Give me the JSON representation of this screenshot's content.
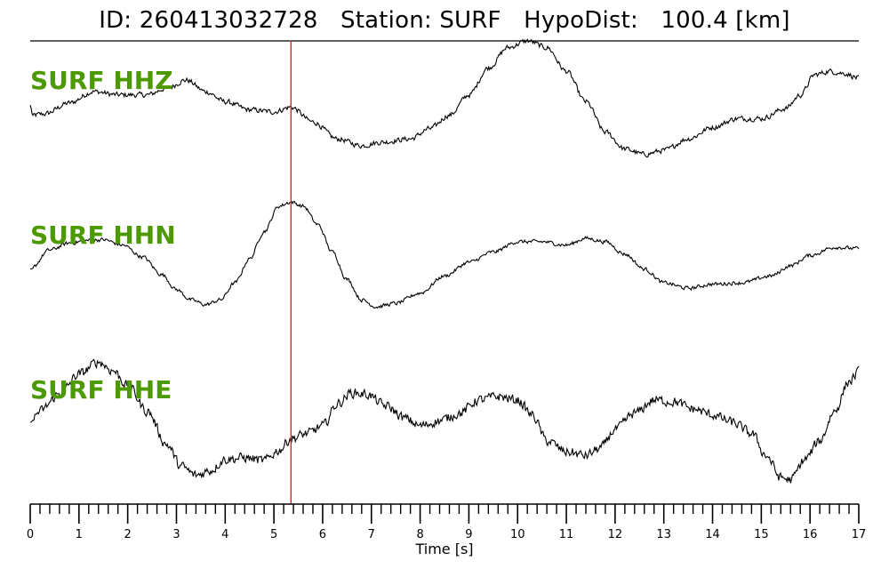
{
  "title": {
    "id_label": "ID:",
    "id_value": "260413032728",
    "station_label": "Station:",
    "station_value": "SURF",
    "hypodist_label": "HypoDist:",
    "hypodist_value": "100.4",
    "hypodist_unit": "[km]"
  },
  "chart_data": {
    "type": "line",
    "title": "ID: 260413032728   Station: SURF   HypoDist:   100.4 [km]",
    "xlabel": "Time [s]",
    "ylabel": "",
    "xlim": [
      0,
      17
    ],
    "xticks_major": [
      0,
      1,
      2,
      3,
      4,
      5,
      6,
      7,
      8,
      9,
      10,
      11,
      12,
      13,
      14,
      15,
      16,
      17
    ],
    "xticks_minor_step": 0.2,
    "grid": false,
    "label_color": "#4c9900",
    "pick_line": {
      "x": 5.35,
      "color": "#e8231f"
    },
    "trace_color": "#000000",
    "series": [
      {
        "name": "SURF HHZ",
        "y_range": [
          -1,
          1
        ],
        "noise": 0.035,
        "points": [
          [
            0,
            0.05
          ],
          [
            0.05,
            -0.1
          ],
          [
            0.3,
            -0.08
          ],
          [
            0.8,
            0.08
          ],
          [
            1.3,
            0.25
          ],
          [
            1.8,
            0.2
          ],
          [
            2.4,
            0.2
          ],
          [
            2.8,
            0.3
          ],
          [
            3.2,
            0.42
          ],
          [
            3.6,
            0.25
          ],
          [
            4.0,
            0.1
          ],
          [
            4.5,
            -0.02
          ],
          [
            5.0,
            -0.05
          ],
          [
            5.35,
            0.02
          ],
          [
            5.8,
            -0.2
          ],
          [
            6.3,
            -0.45
          ],
          [
            6.8,
            -0.55
          ],
          [
            7.2,
            -0.5
          ],
          [
            7.8,
            -0.45
          ],
          [
            8.2,
            -0.3
          ],
          [
            8.6,
            -0.1
          ],
          [
            9.0,
            0.2
          ],
          [
            9.4,
            0.6
          ],
          [
            9.8,
            0.9
          ],
          [
            10.2,
            1.0
          ],
          [
            10.6,
            0.9
          ],
          [
            11.0,
            0.55
          ],
          [
            11.4,
            0.1
          ],
          [
            11.8,
            -0.35
          ],
          [
            12.2,
            -0.6
          ],
          [
            12.6,
            -0.68
          ],
          [
            13.0,
            -0.62
          ],
          [
            13.5,
            -0.45
          ],
          [
            14.0,
            -0.28
          ],
          [
            14.5,
            -0.15
          ],
          [
            15.0,
            -0.15
          ],
          [
            15.5,
            0.0
          ],
          [
            15.8,
            0.2
          ],
          [
            16.1,
            0.5
          ],
          [
            16.4,
            0.55
          ],
          [
            16.7,
            0.52
          ],
          [
            17.0,
            0.45
          ]
        ]
      },
      {
        "name": "SURF HHN",
        "y_range": [
          -1,
          1
        ],
        "noise": 0.025,
        "points": [
          [
            0,
            -0.1
          ],
          [
            0.4,
            0.18
          ],
          [
            0.8,
            0.28
          ],
          [
            1.2,
            0.32
          ],
          [
            1.5,
            0.33
          ],
          [
            1.9,
            0.25
          ],
          [
            2.3,
            0.08
          ],
          [
            2.7,
            -0.18
          ],
          [
            3.0,
            -0.4
          ],
          [
            3.3,
            -0.55
          ],
          [
            3.6,
            -0.62
          ],
          [
            3.9,
            -0.55
          ],
          [
            4.2,
            -0.3
          ],
          [
            4.5,
            0.05
          ],
          [
            4.8,
            0.45
          ],
          [
            5.1,
            0.82
          ],
          [
            5.35,
            0.88
          ],
          [
            5.6,
            0.82
          ],
          [
            5.9,
            0.55
          ],
          [
            6.2,
            0.15
          ],
          [
            6.5,
            -0.25
          ],
          [
            6.8,
            -0.55
          ],
          [
            7.1,
            -0.65
          ],
          [
            7.5,
            -0.6
          ],
          [
            8.0,
            -0.45
          ],
          [
            8.5,
            -0.2
          ],
          [
            9.0,
            0.0
          ],
          [
            9.5,
            0.15
          ],
          [
            10.0,
            0.3
          ],
          [
            10.5,
            0.3
          ],
          [
            11.0,
            0.25
          ],
          [
            11.4,
            0.35
          ],
          [
            11.8,
            0.3
          ],
          [
            12.2,
            0.12
          ],
          [
            12.6,
            -0.1
          ],
          [
            13.0,
            -0.3
          ],
          [
            13.5,
            -0.38
          ],
          [
            14.0,
            -0.32
          ],
          [
            14.6,
            -0.3
          ],
          [
            15.2,
            -0.2
          ],
          [
            15.6,
            -0.05
          ],
          [
            16.0,
            0.1
          ],
          [
            16.5,
            0.22
          ],
          [
            17.0,
            0.2
          ]
        ]
      },
      {
        "name": "SURF HHE",
        "y_range": [
          -1,
          1
        ],
        "noise": 0.06,
        "points": [
          [
            0,
            0.0
          ],
          [
            0.2,
            0.15
          ],
          [
            0.6,
            0.38
          ],
          [
            1.0,
            0.65
          ],
          [
            1.4,
            0.82
          ],
          [
            1.7,
            0.7
          ],
          [
            2.0,
            0.5
          ],
          [
            2.4,
            0.15
          ],
          [
            2.8,
            -0.3
          ],
          [
            3.1,
            -0.6
          ],
          [
            3.4,
            -0.72
          ],
          [
            3.7,
            -0.65
          ],
          [
            4.0,
            -0.5
          ],
          [
            4.4,
            -0.48
          ],
          [
            4.8,
            -0.52
          ],
          [
            5.1,
            -0.38
          ],
          [
            5.35,
            -0.22
          ],
          [
            5.7,
            -0.15
          ],
          [
            6.0,
            -0.05
          ],
          [
            6.3,
            0.25
          ],
          [
            6.6,
            0.4
          ],
          [
            6.9,
            0.38
          ],
          [
            7.3,
            0.22
          ],
          [
            7.7,
            0.05
          ],
          [
            8.0,
            -0.05
          ],
          [
            8.4,
            0.02
          ],
          [
            8.8,
            0.12
          ],
          [
            9.2,
            0.3
          ],
          [
            9.6,
            0.35
          ],
          [
            10.0,
            0.3
          ],
          [
            10.3,
            0.1
          ],
          [
            10.6,
            -0.25
          ],
          [
            11.0,
            -0.4
          ],
          [
            11.4,
            -0.45
          ],
          [
            11.7,
            -0.35
          ],
          [
            12.0,
            -0.1
          ],
          [
            12.4,
            0.12
          ],
          [
            12.8,
            0.3
          ],
          [
            13.2,
            0.28
          ],
          [
            13.6,
            0.18
          ],
          [
            14.0,
            0.1
          ],
          [
            14.4,
            0.0
          ],
          [
            14.8,
            -0.15
          ],
          [
            15.1,
            -0.45
          ],
          [
            15.4,
            -0.75
          ],
          [
            15.6,
            -0.78
          ],
          [
            15.9,
            -0.5
          ],
          [
            16.2,
            -0.25
          ],
          [
            16.5,
            0.15
          ],
          [
            16.8,
            0.55
          ],
          [
            17.0,
            0.68
          ]
        ]
      }
    ]
  }
}
